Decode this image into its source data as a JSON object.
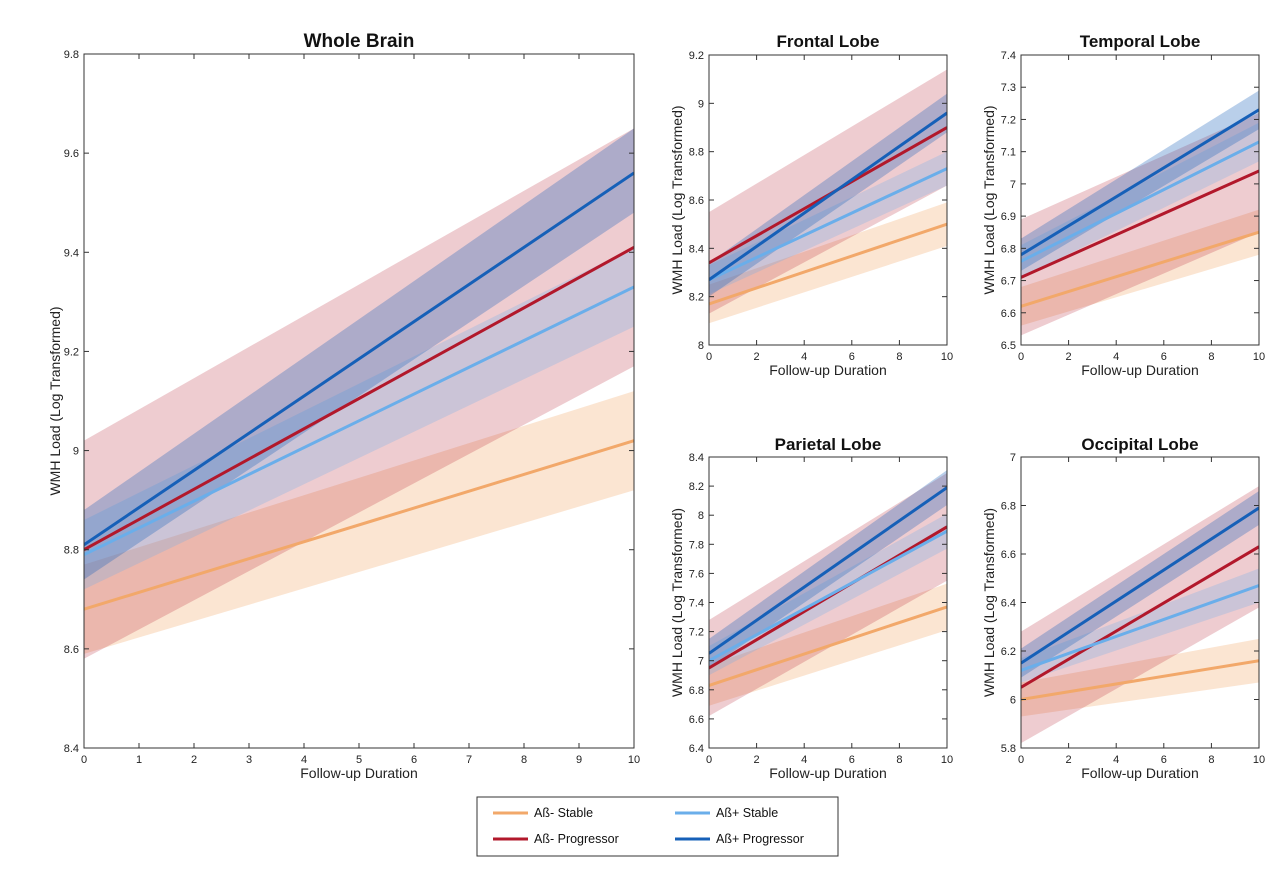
{
  "colors": {
    "neg_stable": "#f2a86a",
    "neg_prog": "#b2182b",
    "pos_stable": "#6aaeea",
    "pos_prog": "#1660b8"
  },
  "legend": {
    "placement": "bottom-center",
    "items": [
      {
        "label": "Aß- Stable",
        "color_key": "neg_stable"
      },
      {
        "label": "Aß+ Stable",
        "color_key": "pos_stable"
      },
      {
        "label": "Aß- Progressor",
        "color_key": "neg_prog"
      },
      {
        "label": "Aß+ Progressor",
        "color_key": "pos_prog"
      }
    ]
  },
  "chart_data": [
    {
      "type": "line",
      "title": "Whole Brain",
      "xlabel": "Follow-up Duration",
      "ylabel": "WMH Load (Log Transformed)",
      "xlim": [
        0,
        10
      ],
      "ylim": [
        8.4,
        9.8
      ],
      "xticks": [
        "0",
        "1",
        "2",
        "3",
        "4",
        "5",
        "6",
        "7",
        "8",
        "9",
        "10"
      ],
      "yticks": [
        "8.4",
        "8.6",
        "8.8",
        "9",
        "9.2",
        "9.4",
        "9.6",
        "9.8"
      ],
      "grid": false,
      "series": [
        {
          "name": "Aß- Stable",
          "color_key": "neg_stable",
          "x": [
            0,
            10
          ],
          "y": [
            8.68,
            9.02
          ],
          "lower": [
            8.59,
            8.92
          ],
          "upper": [
            8.77,
            9.12
          ]
        },
        {
          "name": "Aß- Progressor",
          "color_key": "neg_prog",
          "x": [
            0,
            10
          ],
          "y": [
            8.8,
            9.41
          ],
          "lower": [
            8.58,
            9.17
          ],
          "upper": [
            9.02,
            9.65
          ]
        },
        {
          "name": "Aß+ Stable",
          "color_key": "pos_stable",
          "x": [
            0,
            10
          ],
          "y": [
            8.79,
            9.33
          ],
          "lower": [
            8.72,
            9.25
          ],
          "upper": [
            8.86,
            9.41
          ]
        },
        {
          "name": "Aß+ Progressor",
          "color_key": "pos_prog",
          "x": [
            0,
            10
          ],
          "y": [
            8.81,
            9.56
          ],
          "lower": [
            8.74,
            9.48
          ],
          "upper": [
            8.88,
            9.65
          ]
        }
      ]
    },
    {
      "type": "line",
      "title": "Frontal Lobe",
      "xlabel": "Follow-up Duration",
      "ylabel": "WMH Load (Log Transformed)",
      "xlim": [
        0,
        10
      ],
      "ylim": [
        8,
        9.2
      ],
      "xticks": [
        "0",
        "2",
        "4",
        "6",
        "8",
        "10"
      ],
      "yticks": [
        "8",
        "8.2",
        "8.4",
        "8.6",
        "8.8",
        "9",
        "9.2"
      ],
      "grid": false,
      "series": [
        {
          "name": "Aß- Stable",
          "color_key": "neg_stable",
          "x": [
            0,
            10
          ],
          "y": [
            8.17,
            8.5
          ],
          "lower": [
            8.09,
            8.41
          ],
          "upper": [
            8.25,
            8.59
          ]
        },
        {
          "name": "Aß- Progressor",
          "color_key": "neg_prog",
          "x": [
            0,
            10
          ],
          "y": [
            8.34,
            8.9
          ],
          "lower": [
            8.13,
            8.66
          ],
          "upper": [
            8.55,
            9.14
          ]
        },
        {
          "name": "Aß+ Stable",
          "color_key": "pos_stable",
          "x": [
            0,
            10
          ],
          "y": [
            8.27,
            8.73
          ],
          "lower": [
            8.21,
            8.66
          ],
          "upper": [
            8.33,
            8.8
          ]
        },
        {
          "name": "Aß+ Progressor",
          "color_key": "pos_prog",
          "x": [
            0,
            10
          ],
          "y": [
            8.27,
            8.96
          ],
          "lower": [
            8.2,
            8.88
          ],
          "upper": [
            8.34,
            9.04
          ]
        }
      ]
    },
    {
      "type": "line",
      "title": "Temporal Lobe",
      "xlabel": "Follow-up Duration",
      "ylabel": "WMH Load (Log Transformed)",
      "xlim": [
        0,
        10
      ],
      "ylim": [
        6.5,
        7.4
      ],
      "xticks": [
        "0",
        "2",
        "4",
        "6",
        "8",
        "10"
      ],
      "yticks": [
        "6.5",
        "6.6",
        "6.7",
        "6.8",
        "6.9",
        "7",
        "7.1",
        "7.2",
        "7.3",
        "7.4"
      ],
      "grid": false,
      "series": [
        {
          "name": "Aß- Stable",
          "color_key": "neg_stable",
          "x": [
            0,
            10
          ],
          "y": [
            6.62,
            6.85
          ],
          "lower": [
            6.56,
            6.78
          ],
          "upper": [
            6.68,
            6.92
          ]
        },
        {
          "name": "Aß- Progressor",
          "color_key": "neg_prog",
          "x": [
            0,
            10
          ],
          "y": [
            6.71,
            7.04
          ],
          "lower": [
            6.53,
            6.85
          ],
          "upper": [
            6.89,
            7.22
          ]
        },
        {
          "name": "Aß+ Stable",
          "color_key": "pos_stable",
          "x": [
            0,
            10
          ],
          "y": [
            6.76,
            7.13
          ],
          "lower": [
            6.71,
            7.07
          ],
          "upper": [
            6.81,
            7.19
          ]
        },
        {
          "name": "Aß+ Progressor",
          "color_key": "pos_prog",
          "x": [
            0,
            10
          ],
          "y": [
            6.78,
            7.23
          ],
          "lower": [
            6.73,
            7.17
          ],
          "upper": [
            6.83,
            7.29
          ]
        }
      ]
    },
    {
      "type": "line",
      "title": "Parietal Lobe",
      "xlabel": "Follow-up Duration",
      "ylabel": "WMH Load (Log Transformed)",
      "xlim": [
        0,
        10
      ],
      "ylim": [
        6.4,
        8.4
      ],
      "xticks": [
        "0",
        "2",
        "4",
        "6",
        "8",
        "10"
      ],
      "yticks": [
        "6.4",
        "6.6",
        "6.8",
        "7",
        "7.2",
        "7.4",
        "7.6",
        "7.8",
        "8",
        "8.2",
        "8.4"
      ],
      "grid": false,
      "series": [
        {
          "name": "Aß- Stable",
          "color_key": "neg_stable",
          "x": [
            0,
            10
          ],
          "y": [
            6.83,
            7.37
          ],
          "lower": [
            6.69,
            7.21
          ],
          "upper": [
            6.97,
            7.53
          ]
        },
        {
          "name": "Aß- Progressor",
          "color_key": "neg_prog",
          "x": [
            0,
            10
          ],
          "y": [
            6.95,
            7.92
          ],
          "lower": [
            6.62,
            7.55
          ],
          "upper": [
            7.28,
            8.29
          ]
        },
        {
          "name": "Aß+ Stable",
          "color_key": "pos_stable",
          "x": [
            0,
            10
          ],
          "y": [
            7.0,
            7.89
          ],
          "lower": [
            6.9,
            7.77
          ],
          "upper": [
            7.1,
            8.01
          ]
        },
        {
          "name": "Aß+ Progressor",
          "color_key": "pos_prog",
          "x": [
            0,
            10
          ],
          "y": [
            7.05,
            8.19
          ],
          "lower": [
            6.95,
            8.07
          ],
          "upper": [
            7.15,
            8.31
          ]
        }
      ]
    },
    {
      "type": "line",
      "title": "Occipital Lobe",
      "xlabel": "Follow-up Duration",
      "ylabel": "WMH Load (Log Transformed)",
      "xlim": [
        0,
        10
      ],
      "ylim": [
        5.8,
        7
      ],
      "xticks": [
        "0",
        "2",
        "4",
        "6",
        "8",
        "10"
      ],
      "yticks": [
        "5.8",
        "6",
        "6.2",
        "6.4",
        "6.6",
        "6.8",
        "7"
      ],
      "grid": false,
      "series": [
        {
          "name": "Aß- Stable",
          "color_key": "neg_stable",
          "x": [
            0,
            10
          ],
          "y": [
            6.0,
            6.16
          ],
          "lower": [
            5.93,
            6.07
          ],
          "upper": [
            6.07,
            6.25
          ]
        },
        {
          "name": "Aß- Progressor",
          "color_key": "neg_prog",
          "x": [
            0,
            10
          ],
          "y": [
            6.05,
            6.63
          ],
          "lower": [
            5.82,
            6.38
          ],
          "upper": [
            6.28,
            6.88
          ]
        },
        {
          "name": "Aß+ Stable",
          "color_key": "pos_stable",
          "x": [
            0,
            10
          ],
          "y": [
            6.12,
            6.47
          ],
          "lower": [
            6.07,
            6.4
          ],
          "upper": [
            6.17,
            6.54
          ]
        },
        {
          "name": "Aß+ Progressor",
          "color_key": "pos_prog",
          "x": [
            0,
            10
          ],
          "y": [
            6.15,
            6.79
          ],
          "lower": [
            6.09,
            6.72
          ],
          "upper": [
            6.21,
            6.86
          ]
        }
      ]
    }
  ]
}
